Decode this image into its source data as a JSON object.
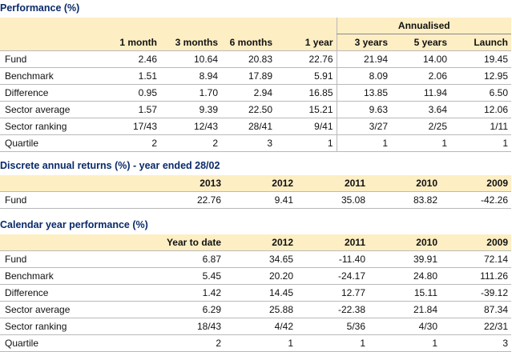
{
  "performance": {
    "title": "Performance (%)",
    "annualised_label": "Annualised",
    "columns": [
      "1 month",
      "3 months",
      "6 months",
      "1 year",
      "3 years",
      "5 years",
      "Launch"
    ],
    "rows": [
      {
        "label": "Fund",
        "values": [
          "2.46",
          "10.64",
          "20.83",
          "22.76",
          "21.94",
          "14.00",
          "19.45"
        ]
      },
      {
        "label": "Benchmark",
        "values": [
          "1.51",
          "8.94",
          "17.89",
          "5.91",
          "8.09",
          "2.06",
          "12.95"
        ]
      },
      {
        "label": "Difference",
        "values": [
          "0.95",
          "1.70",
          "2.94",
          "16.85",
          "13.85",
          "11.94",
          "6.50"
        ]
      },
      {
        "label": "Sector average",
        "values": [
          "1.57",
          "9.39",
          "22.50",
          "15.21",
          "9.63",
          "3.64",
          "12.06"
        ]
      },
      {
        "label": "Sector ranking",
        "values": [
          "17/43",
          "12/43",
          "28/41",
          "9/41",
          "3/27",
          "2/25",
          "1/11"
        ]
      },
      {
        "label": "Quartile",
        "values": [
          "2",
          "2",
          "3",
          "1",
          "1",
          "1",
          "1"
        ]
      }
    ]
  },
  "discrete": {
    "title": "Discrete annual returns (%) - year ended 28/02",
    "columns": [
      "2013",
      "2012",
      "2011",
      "2010",
      "2009"
    ],
    "rows": [
      {
        "label": "Fund",
        "values": [
          "22.76",
          "9.41",
          "35.08",
          "83.82",
          "-42.26"
        ]
      }
    ]
  },
  "calendar": {
    "title": "Calendar year performance (%)",
    "columns": [
      "Year to date",
      "2012",
      "2011",
      "2010",
      "2009"
    ],
    "rows": [
      {
        "label": "Fund",
        "values": [
          "6.87",
          "34.65",
          "-11.40",
          "39.91",
          "72.14"
        ]
      },
      {
        "label": "Benchmark",
        "values": [
          "5.45",
          "20.20",
          "-24.17",
          "24.80",
          "111.26"
        ]
      },
      {
        "label": "Difference",
        "values": [
          "1.42",
          "14.45",
          "12.77",
          "15.11",
          "-39.12"
        ]
      },
      {
        "label": "Sector average",
        "values": [
          "6.29",
          "25.88",
          "-22.38",
          "21.84",
          "87.34"
        ]
      },
      {
        "label": "Sector ranking",
        "values": [
          "18/43",
          "4/42",
          "5/36",
          "4/30",
          "22/31"
        ]
      },
      {
        "label": "Quartile",
        "values": [
          "2",
          "1",
          "1",
          "1",
          "3"
        ]
      }
    ]
  },
  "colors": {
    "header_bg": "#fdeec4",
    "title": "#0a2a6a",
    "rule": "#b9b9b9"
  }
}
